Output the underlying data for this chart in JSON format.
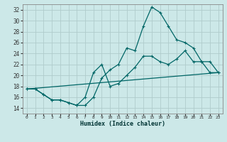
{
  "xlabel": "Humidex (Indice chaleur)",
  "bg_color": "#cce8e8",
  "grid_color": "#b0cccc",
  "line_color": "#006666",
  "spine_color": "#888888",
  "xlim": [
    -0.5,
    23.5
  ],
  "ylim": [
    13,
    33
  ],
  "xticks": [
    0,
    1,
    2,
    3,
    4,
    5,
    6,
    7,
    8,
    9,
    10,
    11,
    12,
    13,
    14,
    15,
    16,
    17,
    18,
    19,
    20,
    21,
    22,
    23
  ],
  "yticks": [
    14,
    16,
    18,
    20,
    22,
    24,
    26,
    28,
    30,
    32
  ],
  "series1_x": [
    0,
    1,
    2,
    3,
    4,
    5,
    6,
    7,
    8,
    9,
    10,
    11,
    12,
    13,
    14,
    15,
    16,
    17,
    18,
    19,
    20,
    21,
    22,
    23
  ],
  "series1_y": [
    17.5,
    17.5,
    16.5,
    15.5,
    15.5,
    15.0,
    14.5,
    14.5,
    16.0,
    19.5,
    21.0,
    22.0,
    25.0,
    24.5,
    29.0,
    32.5,
    31.5,
    29.0,
    26.5,
    26.0,
    25.0,
    22.5,
    22.5,
    20.5
  ],
  "series2_x": [
    0,
    1,
    2,
    3,
    4,
    5,
    6,
    7,
    8,
    9,
    10,
    11,
    12,
    13,
    14,
    15,
    16,
    17,
    18,
    19,
    20,
    21,
    22,
    23
  ],
  "series2_y": [
    17.5,
    17.5,
    16.5,
    15.5,
    15.5,
    15.0,
    14.5,
    16.0,
    20.5,
    22.0,
    18.0,
    18.5,
    20.0,
    21.5,
    23.5,
    23.5,
    22.5,
    22.0,
    23.0,
    24.5,
    22.5,
    22.5,
    20.5,
    20.5
  ],
  "series3_x": [
    0,
    23
  ],
  "series3_y": [
    17.5,
    20.5
  ]
}
